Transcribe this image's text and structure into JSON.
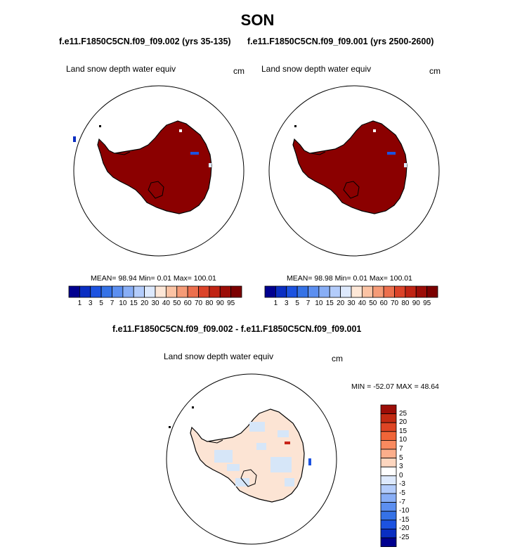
{
  "page": {
    "title": "SON",
    "diff_title": "f.e11.F1850C5CN.f09_f09.002 - f.e11.F1850C5CN.f09_f09.001"
  },
  "panels": [
    {
      "case_title": "f.e11.F1850C5CN.f09_f09.002 (yrs 35-135)",
      "variable": "Land snow depth water equiv",
      "units": "cm",
      "stats": {
        "mean": "98.94",
        "min": "0.01",
        "max": "100.01"
      },
      "stats_text": "MEAN=  98.94  Min=    0.01  Max= 100.01"
    },
    {
      "case_title": "f.e11.F1850C5CN.f09_f09.001 (yrs 2500-2600)",
      "variable": "Land snow depth water equiv",
      "units": "cm",
      "stats": {
        "mean": "98.98",
        "min": "0.01",
        "max": "100.01"
      },
      "stats_text": "MEAN=  98.98  Min=    0.01  Max= 100.01"
    }
  ],
  "diff_panel": {
    "variable": "Land snow depth water equiv",
    "units": "cm",
    "minmax_text": "MIN = -52.07 MAX =  48.64"
  },
  "colorbar_horizontal": {
    "colors": [
      "#00008f",
      "#0a2ec2",
      "#1c52e0",
      "#3572e6",
      "#5c8ff0",
      "#88aef6",
      "#b3ccfb",
      "#dde9fd",
      "#fde7d7",
      "#fbc3a4",
      "#f59b77",
      "#ec6f4d",
      "#db4329",
      "#c02414",
      "#9c0d07",
      "#7b0000"
    ],
    "labels": [
      "1",
      "3",
      "5",
      "7",
      "10",
      "15",
      "20",
      "30",
      "40",
      "50",
      "60",
      "70",
      "80",
      "90",
      "95"
    ]
  },
  "colorbar_vertical": {
    "colors": [
      "#9c0d07",
      "#c22a12",
      "#de4524",
      "#f06538",
      "#f98a5f",
      "#fbae8b",
      "#fdd6bf",
      "#ffffff",
      "#dde9fd",
      "#b3ccfb",
      "#88aef6",
      "#5c8ff0",
      "#3572e6",
      "#1c52e0",
      "#0a2ec2",
      "#00008f"
    ],
    "labels": [
      "25",
      "20",
      "15",
      "10",
      "7",
      "5",
      "3",
      "0",
      "-3",
      "-5",
      "-7",
      "-10",
      "-15",
      "-20",
      "-25"
    ]
  },
  "map_colors": {
    "fill_high": "#8b0000",
    "diff_base": "#fce4d4",
    "diff_neg": "#d6e6f8",
    "diff_pos": "#c8241a",
    "diff_blue": "#1c52e0"
  }
}
